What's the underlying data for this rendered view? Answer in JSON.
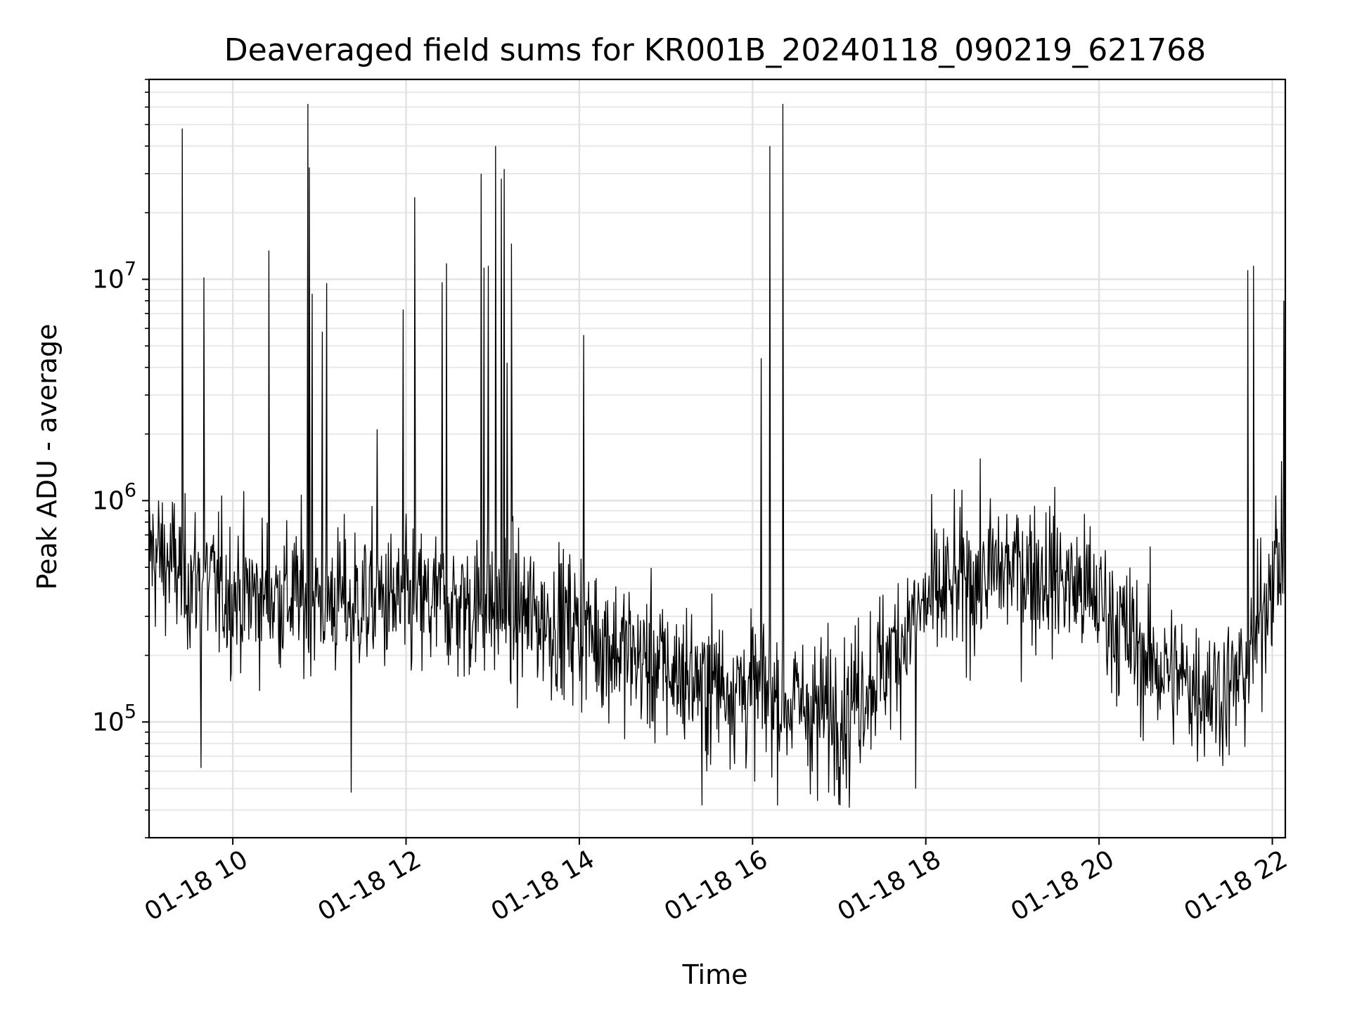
{
  "chart_data": {
    "type": "line",
    "title": "Deaveraged field sums for KR001B_20240118_090219_621768",
    "xlabel": "Time",
    "ylabel": "Peak ADU - average",
    "x_ticks": [
      "01-18 10",
      "01-18 12",
      "01-18 14",
      "01-18 16",
      "01-18 18",
      "01-18 20",
      "01-18 22"
    ],
    "y_ticks": [
      {
        "base": "10",
        "exp": "5",
        "value": 100000
      },
      {
        "base": "10",
        "exp": "6",
        "value": 1000000
      },
      {
        "base": "10",
        "exp": "7",
        "value": 10000000
      }
    ],
    "y_scale": "log",
    "xlim": [
      "2024-01-18 09:02",
      "2024-01-18 22:09"
    ],
    "ylim": [
      30000,
      80000000
    ],
    "grid": true,
    "line_color": "#000000",
    "baseline": {
      "x": [
        "2024-01-18 09:02",
        "2024-01-18 09:30",
        "2024-01-18 10:00",
        "2024-01-18 11:00",
        "2024-01-18 12:00",
        "2024-01-18 13:00",
        "2024-01-18 14:00",
        "2024-01-18 14:30",
        "2024-01-18 15:00",
        "2024-01-18 16:00",
        "2024-01-18 16:30",
        "2024-01-18 17:00",
        "2024-01-18 17:30",
        "2024-01-18 18:00",
        "2024-01-18 18:30",
        "2024-01-18 19:00",
        "2024-01-18 19:30",
        "2024-01-18 20:00",
        "2024-01-18 20:30",
        "2024-01-18 21:00",
        "2024-01-18 21:30",
        "2024-01-18 21:45",
        "2024-01-18 22:00",
        "2024-01-18 22:09"
      ],
      "y": [
        600000,
        450000,
        380000,
        360000,
        340000,
        330000,
        270000,
        210000,
        170000,
        140000,
        120000,
        110000,
        180000,
        340000,
        440000,
        500000,
        460000,
        350000,
        200000,
        150000,
        140000,
        180000,
        500000,
        550000
      ]
    },
    "spikes": {
      "x": [
        "2024-01-18 09:25",
        "2024-01-18 09:40",
        "2024-01-18 10:25",
        "2024-01-18 10:52",
        "2024-01-18 10:53",
        "2024-01-18 10:55",
        "2024-01-18 11:02",
        "2024-01-18 11:05",
        "2024-01-18 11:40",
        "2024-01-18 11:58",
        "2024-01-18 12:06",
        "2024-01-18 12:25",
        "2024-01-18 12:28",
        "2024-01-18 12:52",
        "2024-01-18 12:54",
        "2024-01-18 12:57",
        "2024-01-18 13:02",
        "2024-01-18 13:06",
        "2024-01-18 13:08",
        "2024-01-18 13:10",
        "2024-01-18 13:13",
        "2024-01-18 14:03",
        "2024-01-18 16:06",
        "2024-01-18 16:12",
        "2024-01-18 16:21",
        "2024-01-18 21:43",
        "2024-01-18 21:47",
        "2024-01-18 22:08"
      ],
      "y": [
        48000000,
        10200000,
        13500000,
        62000000,
        32000000,
        8600000,
        5800000,
        9600000,
        2100000,
        7300000,
        23500000,
        9700000,
        11800000,
        30000000,
        11300000,
        11500000,
        40000000,
        28500000,
        31500000,
        4200000,
        14500000,
        5600000,
        4400000,
        40000000,
        62000000,
        11000000,
        11500000,
        8000000
      ]
    },
    "dips": {
      "x": [
        "2024-01-18 09:38",
        "2024-01-18 11:22",
        "2024-01-18 15:25",
        "2024-01-18 16:45",
        "2024-01-18 17:07",
        "2024-01-18 17:53"
      ],
      "y": [
        62000,
        48000,
        42000,
        44000,
        41000,
        50000
      ]
    }
  }
}
